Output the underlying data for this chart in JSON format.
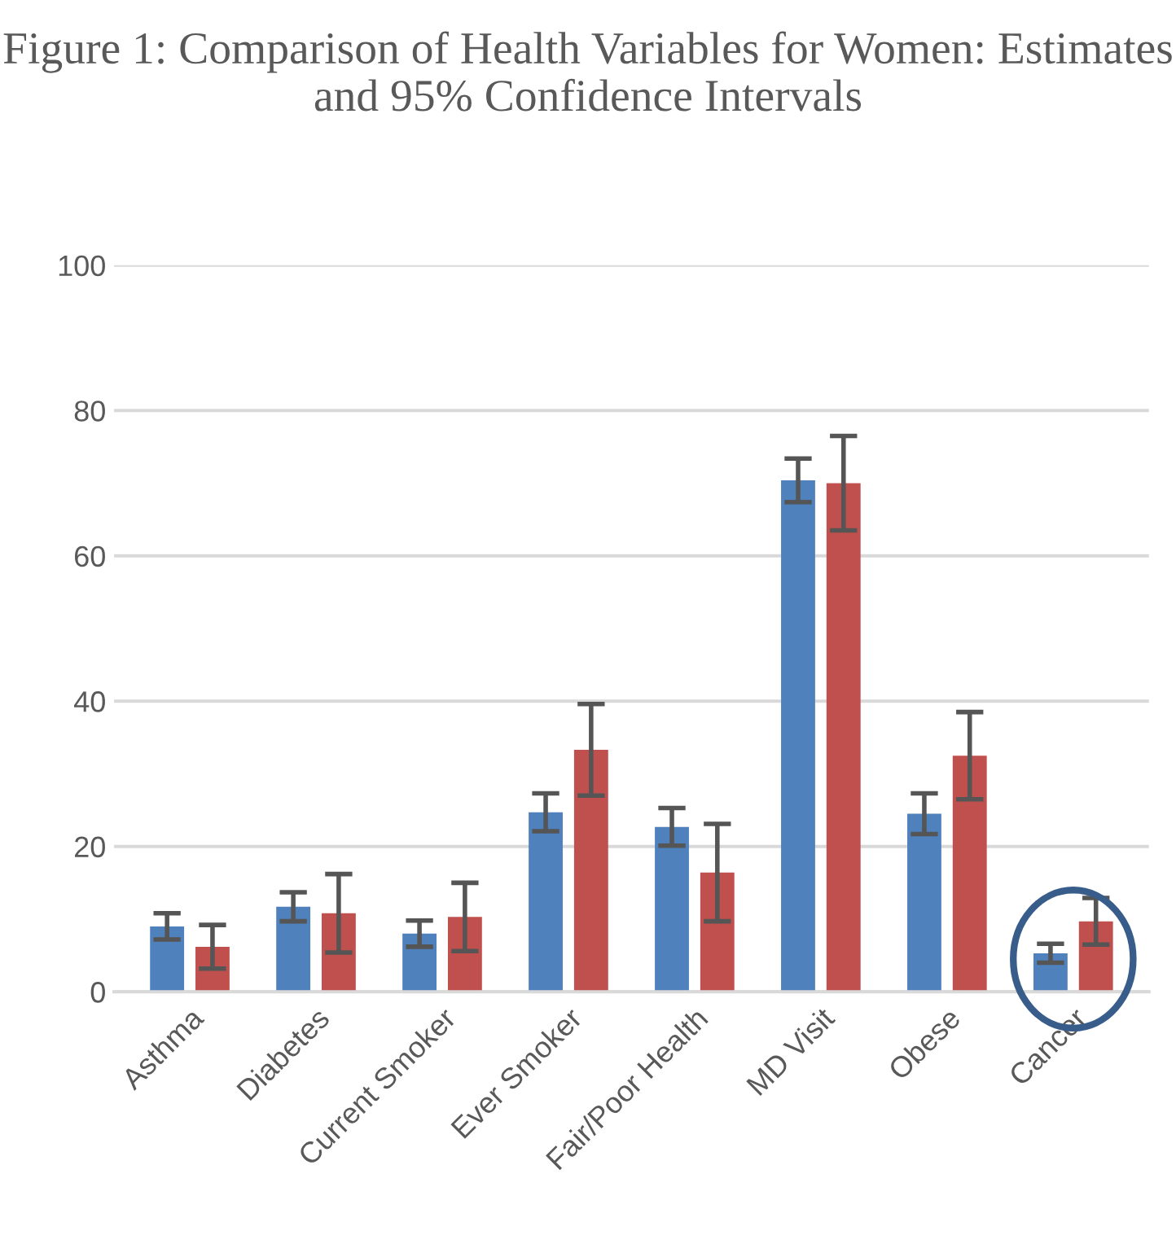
{
  "chart_data": {
    "type": "bar",
    "title": "Figure 1: Comparison of Health Variables for Women: Estimates and 95% Confidence Intervals",
    "categories": [
      "Asthma",
      "Diabetes",
      "Current Smoker",
      "Ever Smoker",
      "Fair/Poor Health",
      "MD Visit",
      "Obese",
      "Cancer"
    ],
    "series": [
      {
        "color": "#4f81bd",
        "values": [
          9.0,
          11.7,
          8.0,
          24.7,
          22.7,
          70.4,
          24.5,
          5.3
        ],
        "errors": [
          1.8,
          2.0,
          1.8,
          2.6,
          2.6,
          3.0,
          2.8,
          1.3
        ]
      },
      {
        "color": "#c0504d",
        "values": [
          6.2,
          10.8,
          10.3,
          33.3,
          16.4,
          70.0,
          32.5,
          9.7
        ],
        "errors": [
          3.0,
          5.4,
          4.7,
          6.3,
          6.7,
          6.5,
          6.0,
          3.2
        ]
      }
    ],
    "ylim": [
      0,
      100
    ],
    "yticks": [
      0,
      20,
      40,
      60,
      80,
      100
    ],
    "grid": "y",
    "legend": false
  }
}
